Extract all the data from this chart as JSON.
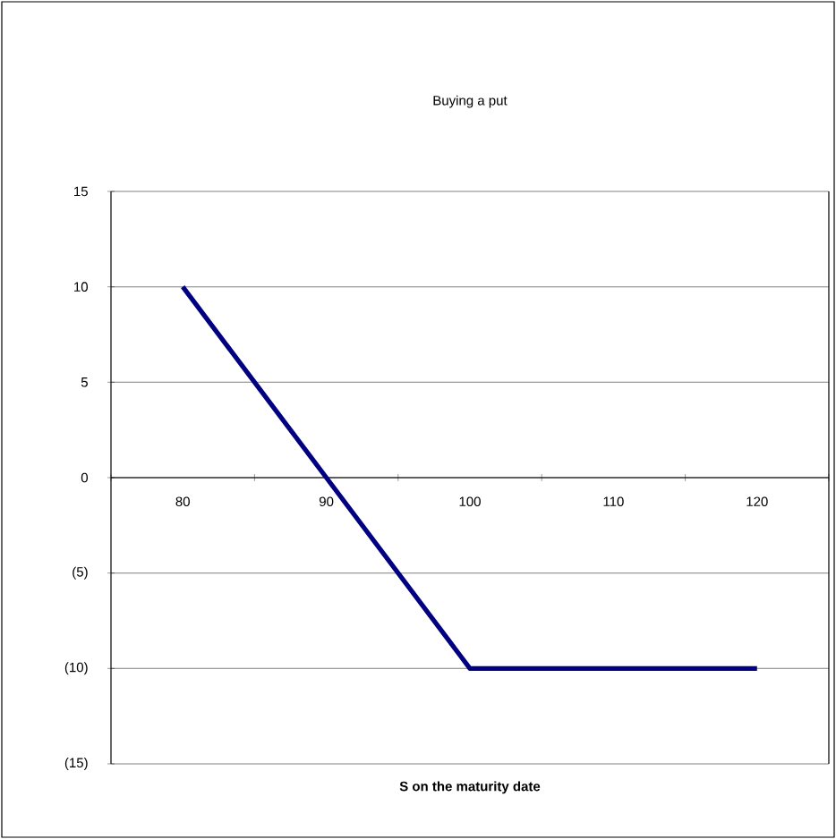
{
  "chart_data": {
    "type": "line",
    "title": "Buying a put",
    "xlabel": "S on the maturity date",
    "categories": [
      "80",
      "90",
      "100",
      "110",
      "120"
    ],
    "series": [
      {
        "color": "#000080",
        "values": [
          10,
          0,
          -10,
          -10,
          -10
        ]
      }
    ],
    "ylim": [
      -15,
      15
    ],
    "yticks": [
      {
        "value": -15,
        "label": "(15)"
      },
      {
        "value": -10,
        "label": "(10)"
      },
      {
        "value": -5,
        "label": "(5)"
      },
      0,
      5,
      10,
      15
    ],
    "grid": "y"
  }
}
